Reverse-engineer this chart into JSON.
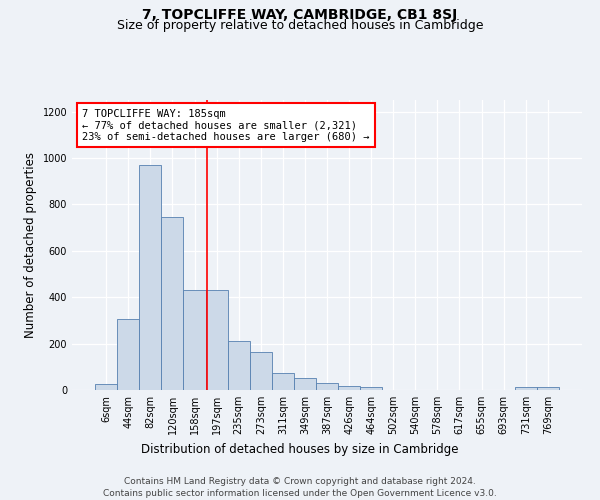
{
  "title": "7, TOPCLIFFE WAY, CAMBRIDGE, CB1 8SJ",
  "subtitle": "Size of property relative to detached houses in Cambridge",
  "xlabel": "Distribution of detached houses by size in Cambridge",
  "ylabel": "Number of detached properties",
  "categories": [
    "6sqm",
    "44sqm",
    "82sqm",
    "120sqm",
    "158sqm",
    "197sqm",
    "235sqm",
    "273sqm",
    "311sqm",
    "349sqm",
    "387sqm",
    "426sqm",
    "464sqm",
    "502sqm",
    "540sqm",
    "578sqm",
    "617sqm",
    "655sqm",
    "693sqm",
    "731sqm",
    "769sqm"
  ],
  "bar_heights": [
    25,
    305,
    970,
    745,
    430,
    430,
    210,
    165,
    75,
    50,
    30,
    18,
    15,
    0,
    0,
    0,
    0,
    0,
    0,
    15,
    15
  ],
  "bar_color": "#ccd9e8",
  "bar_edge_color": "#5580b0",
  "vline_x_idx": 4.55,
  "vline_color": "red",
  "annotation_text": "7 TOPCLIFFE WAY: 185sqm\n← 77% of detached houses are smaller (2,321)\n23% of semi-detached houses are larger (680) →",
  "ylim": [
    0,
    1250
  ],
  "yticks": [
    0,
    200,
    400,
    600,
    800,
    1000,
    1200
  ],
  "footer1": "Contains HM Land Registry data © Crown copyright and database right 2024.",
  "footer2": "Contains public sector information licensed under the Open Government Licence v3.0.",
  "bg_color": "#eef2f7",
  "title_fontsize": 10,
  "subtitle_fontsize": 9,
  "axis_label_fontsize": 8.5,
  "tick_fontsize": 7,
  "footer_fontsize": 6.5
}
